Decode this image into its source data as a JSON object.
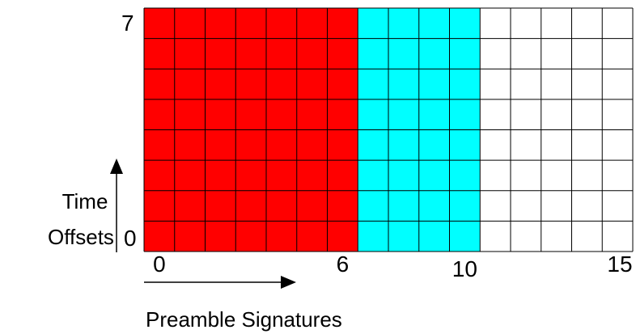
{
  "grid": {
    "columns": 16,
    "rows": 8,
    "column_groups": [
      {
        "from": 0,
        "to": 6,
        "color": "#ff0000"
      },
      {
        "from": 7,
        "to": 10,
        "color": "#00ffff"
      },
      {
        "from": 11,
        "to": 15,
        "color": "#ffffff"
      }
    ],
    "line_color": "#000000"
  },
  "y_axis": {
    "top_label": "7",
    "bottom_label": "0",
    "title_line1": "Time",
    "title_line2": "Offsets"
  },
  "x_axis": {
    "tick_labels": [
      {
        "column": 0,
        "text": "0"
      },
      {
        "column": 6,
        "text": "6"
      },
      {
        "column": 10,
        "text": "10"
      },
      {
        "column": 15,
        "text": "15"
      }
    ],
    "title": "Preamble Signatures"
  }
}
